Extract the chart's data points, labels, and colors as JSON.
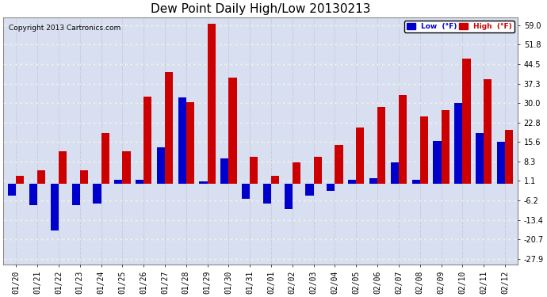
{
  "title": "Dew Point Daily High/Low 20130213",
  "copyright": "Copyright 2013 Cartronics.com",
  "legend_low": "Low  (°F)",
  "legend_high": "High  (°F)",
  "dates": [
    "01/20",
    "01/21",
    "01/22",
    "01/23",
    "01/24",
    "01/25",
    "01/26",
    "01/27",
    "01/28",
    "01/29",
    "01/30",
    "01/31",
    "02/01",
    "02/02",
    "02/03",
    "02/04",
    "02/05",
    "02/06",
    "02/07",
    "02/08",
    "02/09",
    "02/10",
    "02/11",
    "02/12"
  ],
  "high_values": [
    3.0,
    5.0,
    12.0,
    5.0,
    19.0,
    12.0,
    32.5,
    41.5,
    30.5,
    59.5,
    39.5,
    10.0,
    3.0,
    8.0,
    10.0,
    14.5,
    21.0,
    28.5,
    33.0,
    25.0,
    27.5,
    46.5,
    39.0,
    20.0
  ],
  "low_values": [
    -4.5,
    -8.0,
    -17.5,
    -8.0,
    -7.5,
    1.5,
    1.5,
    13.5,
    32.0,
    1.0,
    9.5,
    -5.5,
    -7.5,
    -9.5,
    -4.5,
    -2.5,
    1.5,
    2.0,
    8.0,
    1.5,
    16.0,
    30.0,
    19.0,
    15.5
  ],
  "bar_color_high": "#cc0000",
  "bar_color_low": "#0000cc",
  "background_color": "#ffffff",
  "plot_background": "#d8dff0",
  "grid_color": "#bbbbbb",
  "yticks": [
    -27.9,
    -20.7,
    -13.4,
    -6.2,
    1.1,
    8.3,
    15.6,
    22.8,
    30.0,
    37.3,
    44.5,
    51.8,
    59.0
  ],
  "ylim": [
    -30,
    62
  ],
  "title_fontsize": 11,
  "tick_fontsize": 7,
  "bar_width": 0.38
}
